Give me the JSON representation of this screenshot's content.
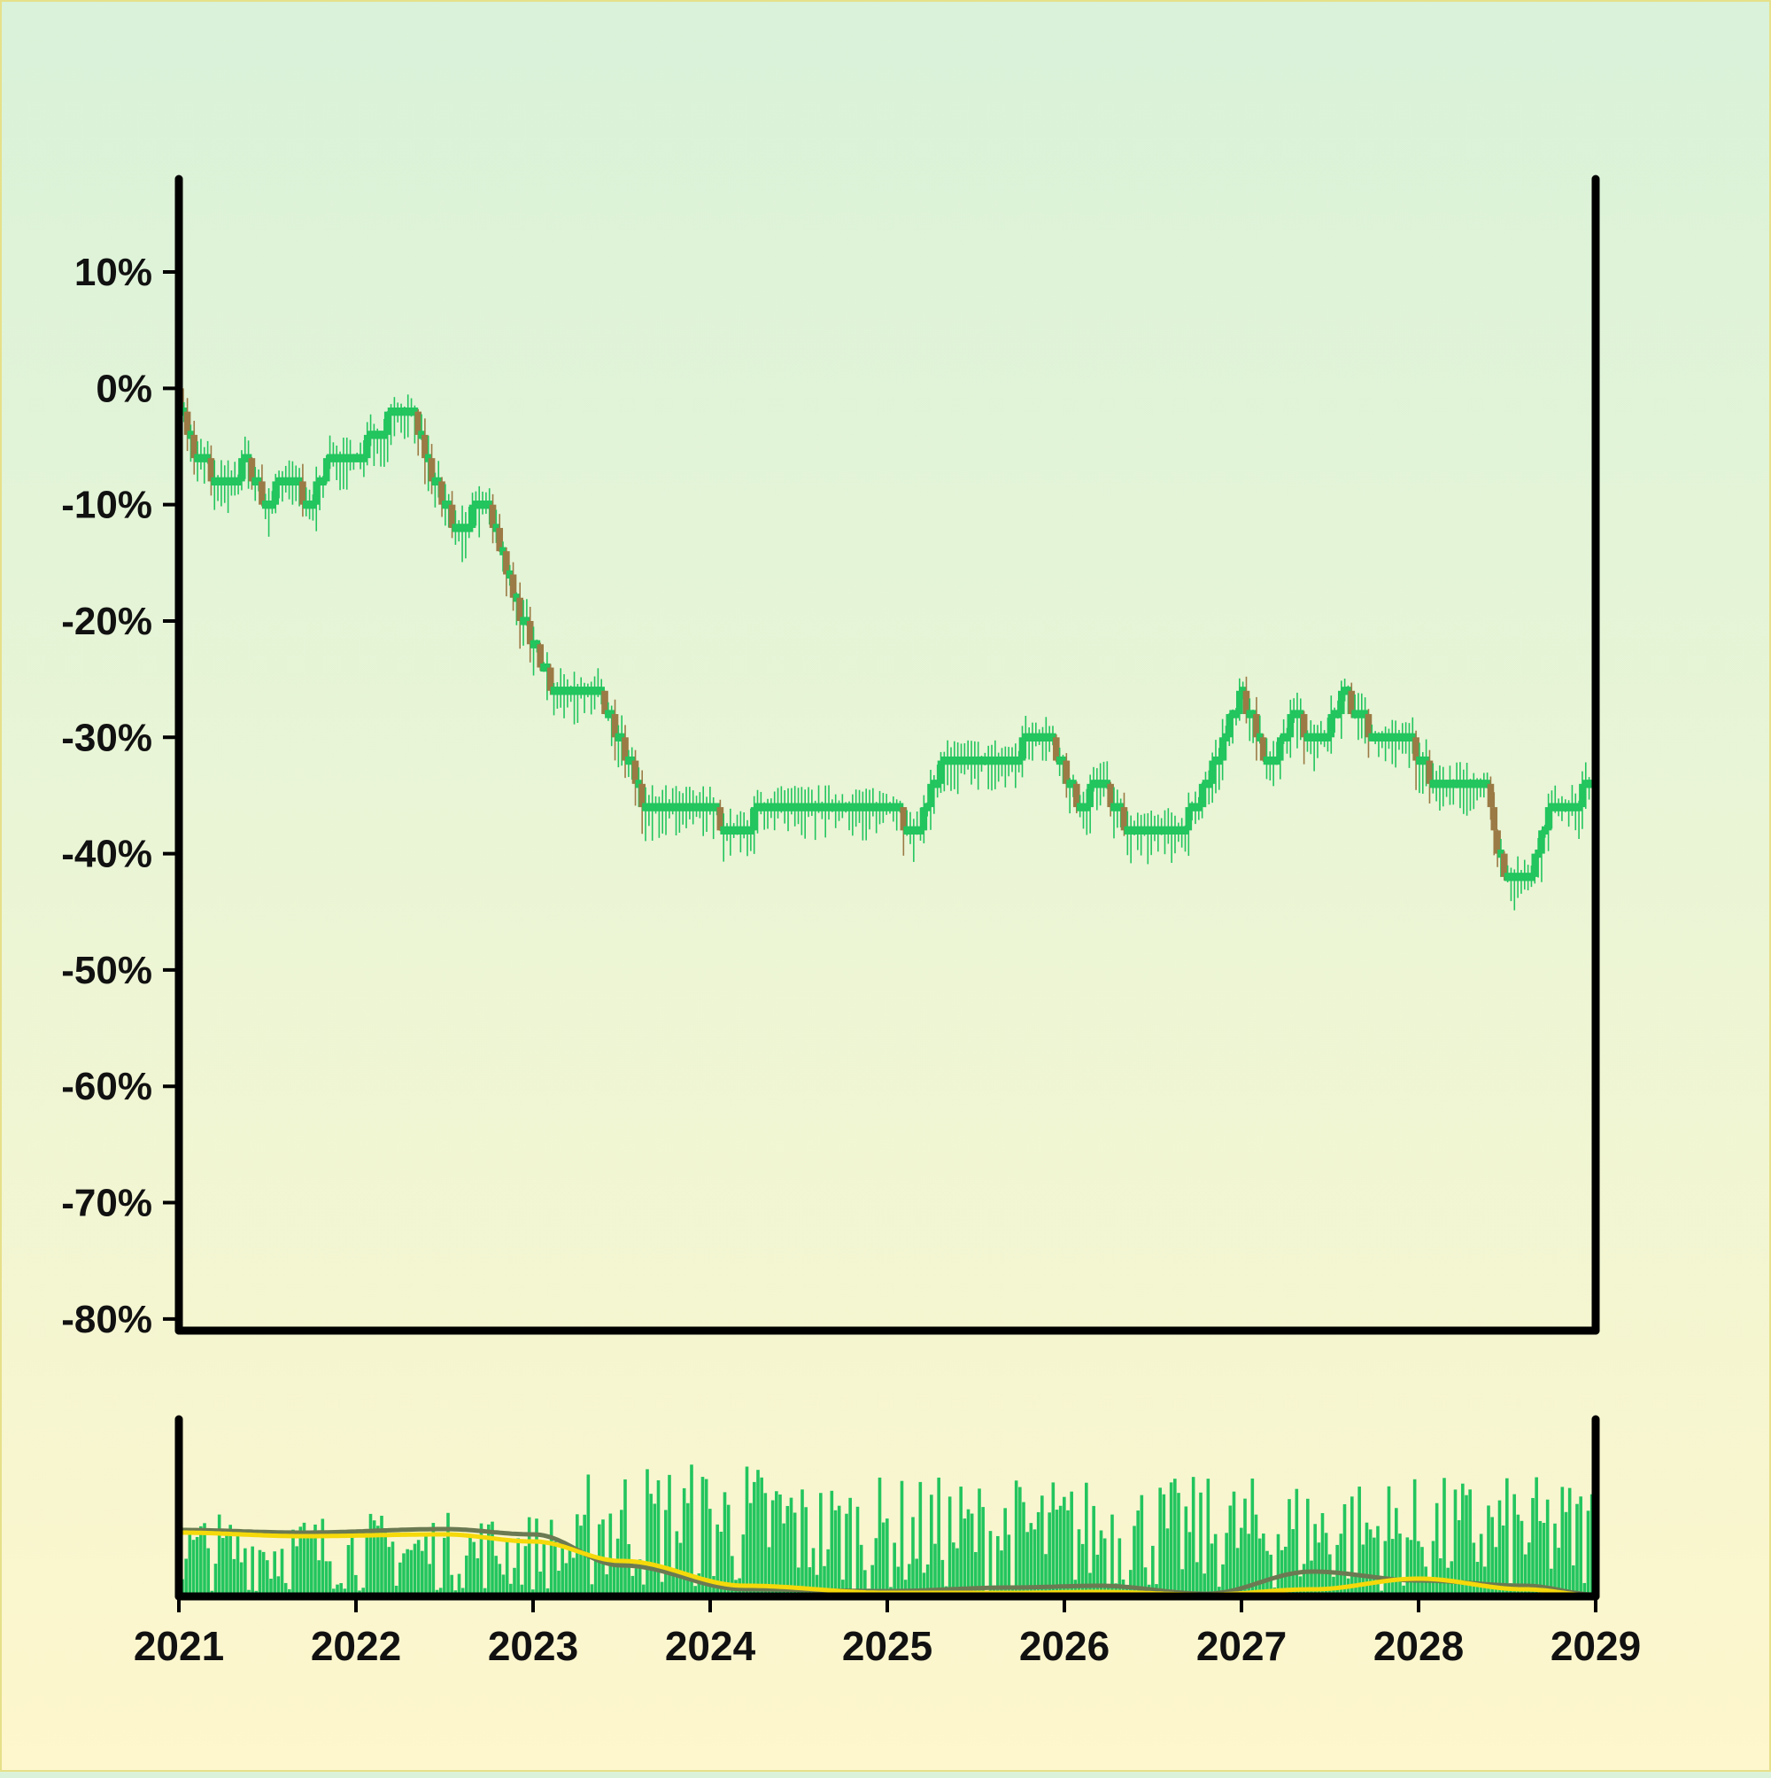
{
  "chart_data": [
    {
      "type": "candlestick",
      "title": "",
      "xlabel": "",
      "ylabel": "",
      "y_unit": "%",
      "ylim": [
        -81,
        18
      ],
      "yticks": [
        10,
        0,
        -10,
        -20,
        -30,
        -40,
        -50,
        -60,
        -70,
        -80
      ],
      "ytick_labels": [
        "10%",
        "0%",
        "-10%",
        "-20%",
        "-30%",
        "-40%",
        "-50%",
        "-60%",
        "-70%",
        "-80%"
      ],
      "xlim": [
        "2021-01-01",
        "2029-01-01"
      ],
      "grid": false,
      "colors": {
        "up": "#22c55e",
        "down": "#9b7a45"
      },
      "anchor_points": {
        "x": [
          "2021-01-01",
          "2021-02-01",
          "2021-04-01",
          "2021-05-20",
          "2021-07-01",
          "2021-08-20",
          "2021-09-25",
          "2021-11-15",
          "2022-01-01",
          "2022-03-01",
          "2022-04-20",
          "2022-06-01",
          "2022-08-01",
          "2022-09-20",
          "2022-10-15",
          "2022-12-01",
          "2023-02-01",
          "2023-04-01",
          "2023-05-15",
          "2023-07-15",
          "2023-09-01",
          "2023-11-01",
          "2024-01-01",
          "2024-03-01",
          "2024-05-01",
          "2024-07-01",
          "2024-09-01",
          "2024-11-01",
          "2025-01-01",
          "2025-03-01",
          "2025-04-15",
          "2025-06-15",
          "2025-08-01",
          "2025-10-01",
          "2025-12-01",
          "2026-02-01",
          "2026-03-15",
          "2026-05-01",
          "2026-07-01",
          "2026-09-01",
          "2026-11-01",
          "2027-01-01",
          "2027-03-01",
          "2027-04-15",
          "2027-06-15",
          "2027-08-01",
          "2027-10-01",
          "2027-12-01",
          "2028-02-01",
          "2028-04-01",
          "2028-05-15",
          "2028-07-01",
          "2028-08-15",
          "2028-10-01",
          "2028-12-01",
          "2029-01-01"
        ],
        "y": [
          -1,
          -5,
          -9,
          -6,
          -10,
          -7,
          -10,
          -5,
          -6,
          -3,
          -1,
          -7,
          -13,
          -9,
          -12,
          -19,
          -25,
          -27,
          -26,
          -32,
          -37,
          -37,
          -36,
          -39,
          -35,
          -37,
          -35,
          -36,
          -35,
          -39,
          -33,
          -31,
          -33,
          -31,
          -30,
          -36,
          -34,
          -37,
          -39,
          -38,
          -33,
          -26,
          -33,
          -28,
          -31,
          -26,
          -30,
          -29,
          -34,
          -35,
          -33,
          -43,
          -42,
          -36,
          -35,
          -35
        ]
      }
    },
    {
      "type": "bar+line",
      "series": [
        {
          "kind": "bar",
          "color": "#22c55e"
        },
        {
          "kind": "line",
          "color": "#6b7a52"
        },
        {
          "kind": "line",
          "color": "#f5d90a"
        }
      ],
      "xtick_labels": [
        "2021",
        "2022",
        "2023",
        "2024",
        "2025",
        "2026",
        "2027",
        "2028",
        "2029"
      ],
      "volume_anchor": {
        "x": [
          2021.0,
          2021.7,
          2022.5,
          2023.0,
          2023.5,
          2024.2,
          2025.0,
          2025.7,
          2026.2,
          2026.8,
          2027.4,
          2028.0,
          2028.6,
          2029.0
        ],
        "slow_line": [
          75,
          72,
          76,
          70,
          35,
          8,
          6,
          10,
          12,
          3,
          28,
          18,
          12,
          2
        ],
        "fast_line": [
          72,
          68,
          70,
          62,
          40,
          12,
          4,
          4,
          5,
          2,
          8,
          20,
          8,
          1
        ]
      }
    }
  ]
}
